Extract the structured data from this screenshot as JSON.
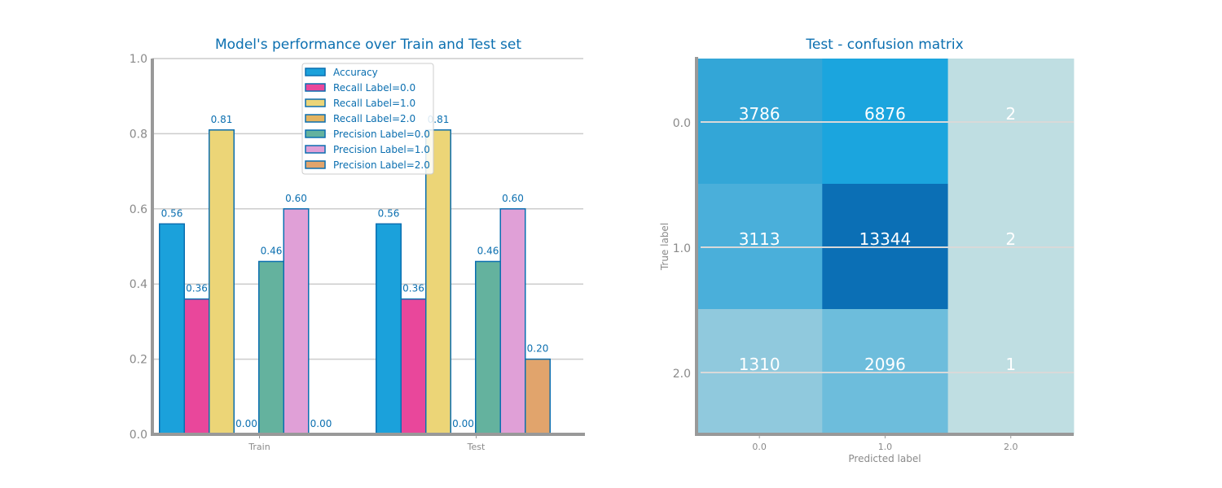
{
  "chart_data": [
    {
      "type": "bar",
      "title": "Model's performance over Train and Test set",
      "categories": [
        "Train",
        "Test"
      ],
      "ylim": [
        0,
        1.0
      ],
      "yticks": [
        "0.0",
        "0.2",
        "0.4",
        "0.6",
        "0.8",
        "1.0"
      ],
      "grid": true,
      "legend_position": "top-center",
      "series": [
        {
          "name": "Accuracy",
          "values": [
            0.56,
            0.56
          ],
          "labels": [
            "0.56",
            "0.56"
          ],
          "color": "#1ba1db"
        },
        {
          "name": "Recall Label=0.0",
          "values": [
            0.36,
            0.36
          ],
          "labels": [
            "0.36",
            "0.36"
          ],
          "color": "#e9479b"
        },
        {
          "name": "Recall Label=1.0",
          "values": [
            0.81,
            0.81
          ],
          "labels": [
            "0.81",
            "0.81"
          ],
          "color": "#ecd577"
        },
        {
          "name": "Recall Label=2.0",
          "values": [
            0.0,
            0.0
          ],
          "labels": [
            "0.00",
            "0.00"
          ],
          "color": "#e4b460"
        },
        {
          "name": "Precision Label=0.0",
          "values": [
            0.46,
            0.46
          ],
          "labels": [
            "0.46",
            "0.46"
          ],
          "color": "#64b29e"
        },
        {
          "name": "Precision Label=1.0",
          "values": [
            0.6,
            0.6
          ],
          "labels": [
            "0.60",
            "0.60"
          ],
          "color": "#e0a0d7"
        },
        {
          "name": "Precision Label=2.0",
          "values": [
            0.0,
            0.2
          ],
          "labels": [
            "0.00",
            "0.20"
          ],
          "color": "#e1a46c"
        }
      ],
      "edge_color": "#0b6fb0"
    },
    {
      "type": "heatmap",
      "title": "Test - confusion matrix",
      "xlabel": "Predicted label",
      "ylabel": "True label",
      "x_ticks": [
        "0.0",
        "1.0",
        "2.0"
      ],
      "y_ticks": [
        "0.0",
        "1.0",
        "2.0"
      ],
      "matrix": [
        [
          3786,
          6876,
          2
        ],
        [
          3113,
          13344,
          2
        ],
        [
          1310,
          2096,
          1
        ]
      ],
      "cell_colors": [
        [
          "#33a6d7",
          "#1ba5de",
          "#bfdee2"
        ],
        [
          "#4aafda",
          "#0b6fb5",
          "#bfdee2"
        ],
        [
          "#90c9dd",
          "#6dbddc",
          "#bfdee2"
        ]
      ]
    }
  ]
}
